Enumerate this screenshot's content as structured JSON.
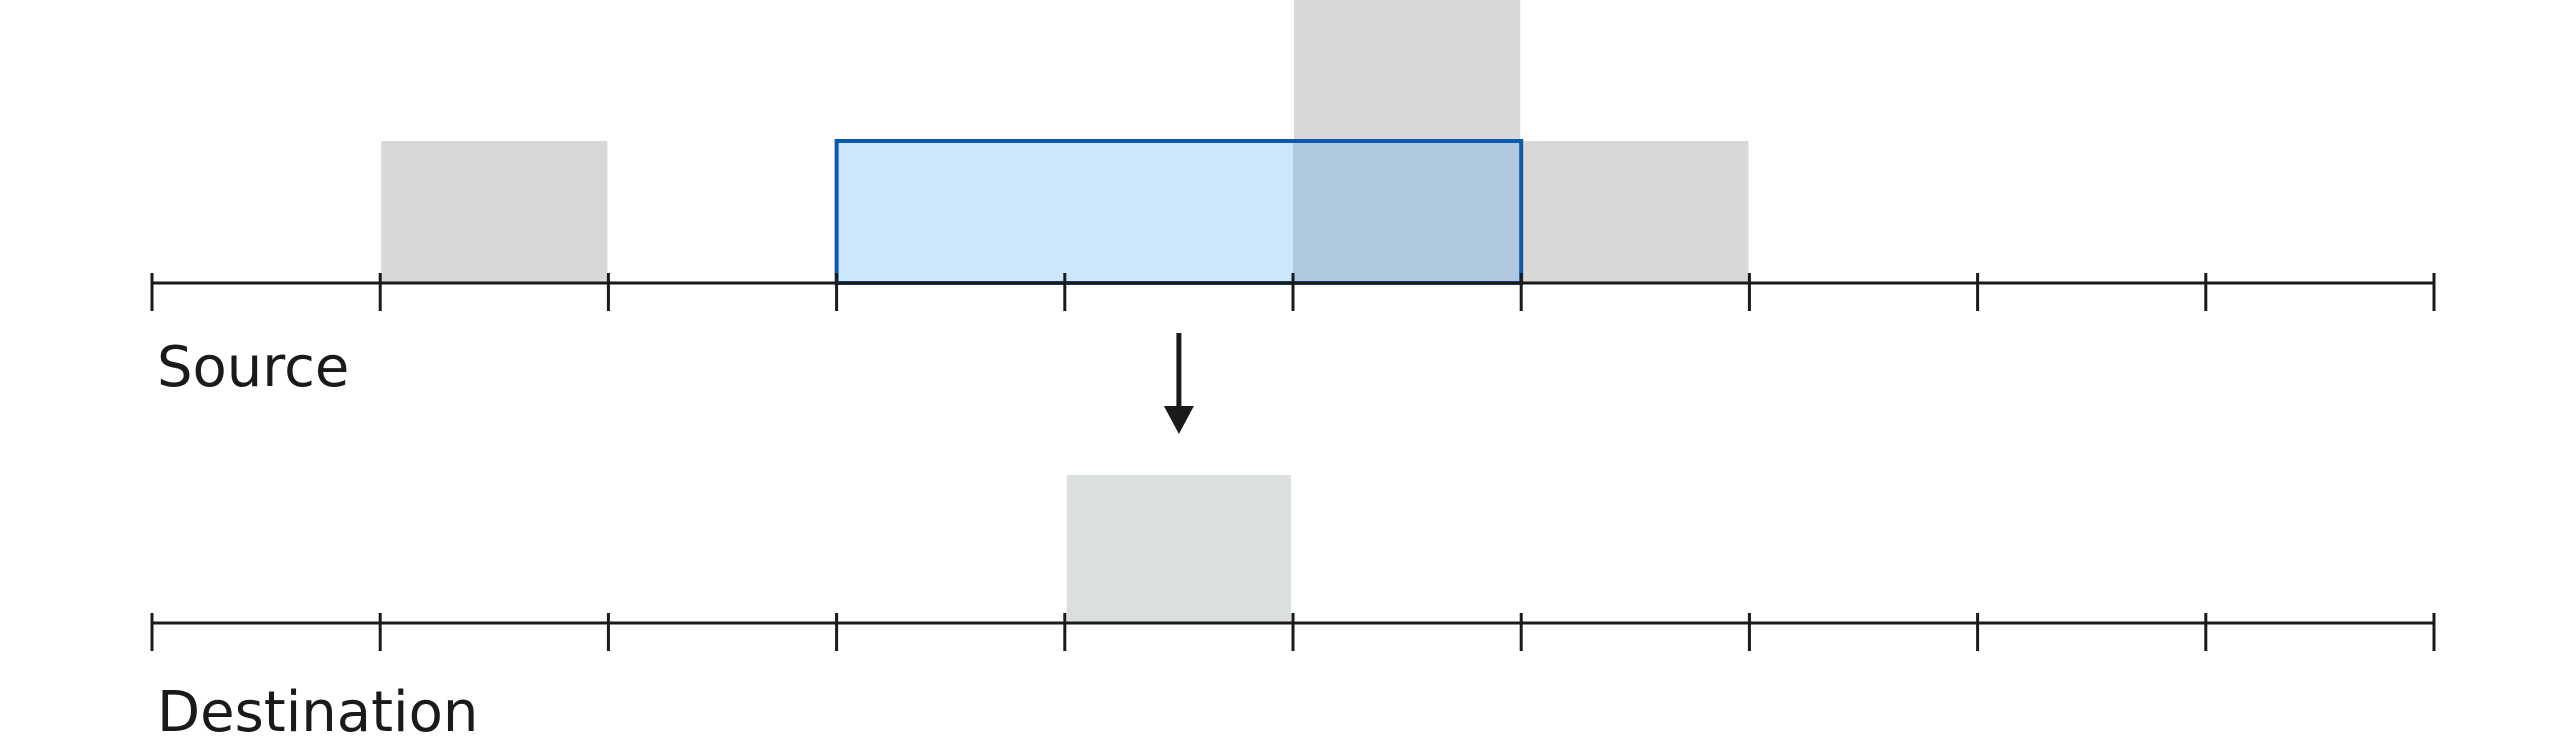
{
  "labels": {
    "source": "Source",
    "destination": "Destination"
  },
  "colors": {
    "bar_fill": "#d8d8d8",
    "destination_bar_fill": "#dcdfdf",
    "overlap_fill": "#b0c9de",
    "window_fill": "#cce6fb",
    "window_stroke": "#0d5aad",
    "axis": "#1a1a1a",
    "arrow": "#1a1a1a"
  },
  "diagram": {
    "bins": 10,
    "source_values": [
      0,
      1,
      0,
      0,
      0,
      2,
      1,
      0,
      0,
      0
    ],
    "destination_values": [
      0,
      0,
      0,
      0,
      1,
      0,
      0,
      0,
      0,
      0
    ],
    "window_bins": [
      3,
      6
    ]
  }
}
